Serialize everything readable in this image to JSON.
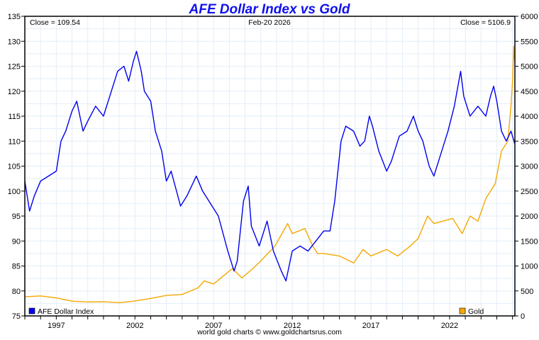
{
  "chart_data": {
    "type": "line",
    "title": "AFE Dollar Index vs Gold",
    "date_label": "Feb-20  2026",
    "footer": "world gold charts © www.goldchartsrus.com",
    "left_close": "Close = 109.54",
    "right_close": "Close = 5106.9",
    "xlim": [
      1995.0,
      2026.15
    ],
    "x_ticks": [
      1997,
      2002,
      2007,
      2012,
      2017,
      2022
    ],
    "ylim_left": [
      75,
      135
    ],
    "ylim_right": [
      0,
      6000
    ],
    "left_ticks": [
      75,
      80,
      85,
      90,
      95,
      100,
      105,
      110,
      115,
      120,
      125,
      130,
      135
    ],
    "right_ticks": [
      0,
      500,
      1000,
      1500,
      2000,
      2500,
      3000,
      3500,
      4000,
      4500,
      5000,
      5500,
      6000
    ],
    "grid": true,
    "series": [
      {
        "name": "AFE Dollar Index",
        "axis": "left",
        "color": "#0000ee",
        "legend": "bottom-left",
        "x": [
          1995.0,
          1995.3,
          1995.6,
          1996.0,
          1996.5,
          1997.0,
          1997.3,
          1997.6,
          1998.0,
          1998.3,
          1998.7,
          1999.0,
          1999.5,
          2000.0,
          2000.5,
          2000.9,
          2001.3,
          2001.6,
          2001.9,
          2002.1,
          2002.4,
          2002.6,
          2003.0,
          2003.3,
          2003.7,
          2004.0,
          2004.3,
          2004.9,
          2005.3,
          2005.9,
          2006.3,
          2006.9,
          2007.3,
          2007.9,
          2008.3,
          2008.5,
          2008.9,
          2009.2,
          2009.4,
          2009.9,
          2010.4,
          2010.8,
          2011.3,
          2011.6,
          2012.0,
          2012.5,
          2013.0,
          2013.5,
          2014.0,
          2014.4,
          2014.7,
          2015.1,
          2015.4,
          2015.9,
          2016.3,
          2016.6,
          2016.9,
          2017.1,
          2017.5,
          2018.0,
          2018.3,
          2018.8,
          2019.3,
          2019.7,
          2020.0,
          2020.3,
          2020.7,
          2021.0,
          2021.4,
          2021.9,
          2022.3,
          2022.7,
          2022.9,
          2023.3,
          2023.8,
          2024.3,
          2024.6,
          2024.8,
          2025.0,
          2025.3,
          2025.6,
          2025.9,
          2026.13
        ],
        "values": [
          102,
          96,
          99,
          102,
          103,
          104,
          110,
          112,
          116,
          118,
          112,
          114,
          117,
          115,
          120,
          124,
          125,
          122,
          126,
          128,
          124,
          120,
          118,
          112,
          108,
          102,
          104,
          97,
          99,
          103,
          100,
          97,
          95,
          88,
          84,
          86,
          98,
          101,
          93,
          89,
          94,
          88,
          84,
          82,
          88,
          89,
          88,
          90,
          92,
          92,
          98,
          110,
          113,
          112,
          109,
          110,
          115,
          113,
          108,
          104,
          106,
          111,
          112,
          115,
          112,
          110,
          105,
          103,
          107,
          112,
          117,
          124,
          119,
          115,
          117,
          115,
          119,
          121,
          118,
          112,
          110,
          112,
          109.54
        ]
      },
      {
        "name": "Gold",
        "axis": "right",
        "color": "#f5a800",
        "legend": "bottom-right",
        "x": [
          1995.0,
          1996.0,
          1997.0,
          1998.0,
          1999.0,
          2000.0,
          2001.0,
          2002.0,
          2003.0,
          2004.0,
          2005.0,
          2006.0,
          2006.4,
          2007.0,
          2008.2,
          2008.8,
          2009.5,
          2010.0,
          2010.9,
          2011.7,
          2012.0,
          2012.8,
          2013.3,
          2013.6,
          2014.0,
          2015.0,
          2015.9,
          2016.5,
          2017.0,
          2018.0,
          2018.7,
          2019.5,
          2020.0,
          2020.6,
          2021.0,
          2022.2,
          2022.8,
          2023.3,
          2023.8,
          2024.3,
          2024.9,
          2025.3,
          2025.7,
          2025.9,
          2026.0,
          2026.08,
          2026.13
        ],
        "values": [
          385,
          400,
          360,
          295,
          280,
          285,
          265,
          300,
          350,
          410,
          430,
          560,
          700,
          640,
          950,
          760,
          950,
          1100,
          1400,
          1850,
          1650,
          1750,
          1400,
          1250,
          1250,
          1200,
          1060,
          1330,
          1200,
          1330,
          1200,
          1400,
          1550,
          2000,
          1850,
          1950,
          1650,
          2000,
          1900,
          2350,
          2650,
          3300,
          3500,
          4200,
          4700,
          5400,
          5106.9
        ]
      }
    ]
  }
}
